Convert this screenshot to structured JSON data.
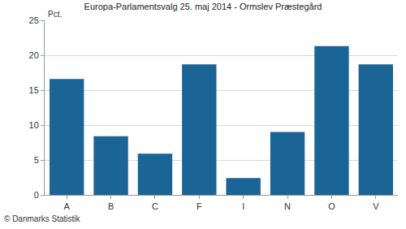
{
  "chart_data": {
    "type": "bar",
    "title": "Europa-Parlamentsvalg 25. maj 2014 - Ormslev Præstegård",
    "y_label": "Pct.",
    "categories": [
      "A",
      "B",
      "C",
      "F",
      "I",
      "N",
      "O",
      "V"
    ],
    "values": [
      16.6,
      8.4,
      5.9,
      18.7,
      2.4,
      9.0,
      21.3,
      18.7
    ],
    "color": "#1b6596",
    "ylim": [
      0,
      25
    ],
    "yticks": [
      0,
      5,
      10,
      15,
      20,
      25
    ],
    "grid": true,
    "annotations": [
      "© Danmarks Statistik"
    ]
  }
}
